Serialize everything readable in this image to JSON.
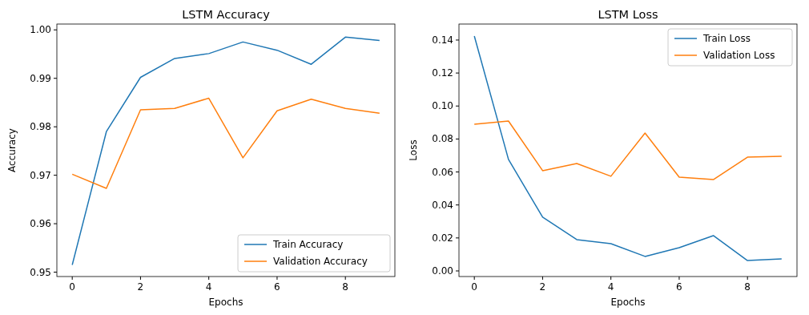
{
  "chart_data": [
    {
      "type": "line",
      "title": "LSTM Accuracy",
      "xlabel": "Epochs",
      "ylabel": "Accuracy",
      "x": [
        0,
        1,
        2,
        3,
        4,
        5,
        6,
        7,
        8,
        9
      ],
      "xlim": [
        -0.45,
        9.45
      ],
      "xticks": [
        0,
        2,
        4,
        6,
        8
      ],
      "ylim": [
        0.9491,
        1.0012
      ],
      "yticks": [
        {
          "value": 0.95,
          "label": "0.95"
        },
        {
          "value": 0.96,
          "label": "0.96"
        },
        {
          "value": 0.97,
          "label": "0.97"
        },
        {
          "value": 0.98,
          "label": "0.98"
        },
        {
          "value": 0.99,
          "label": "0.99"
        },
        {
          "value": 1.0,
          "label": "1.00"
        }
      ],
      "legend": "bottom right",
      "series": [
        {
          "name": "Train Accuracy",
          "color": "#1f77b4",
          "values": [
            0.9515,
            0.979,
            0.9902,
            0.9941,
            0.9951,
            0.9975,
            0.9958,
            0.9929,
            0.9985,
            0.9978
          ]
        },
        {
          "name": "Validation Accuracy",
          "color": "#ff7f0e",
          "values": [
            0.9702,
            0.9673,
            0.9835,
            0.9838,
            0.9859,
            0.9736,
            0.9833,
            0.9857,
            0.9838,
            0.9828
          ]
        }
      ]
    },
    {
      "type": "line",
      "title": "LSTM Loss",
      "xlabel": "Epochs",
      "ylabel": "Loss",
      "x": [
        0,
        1,
        2,
        3,
        4,
        5,
        6,
        7,
        8,
        9
      ],
      "xlim": [
        -0.45,
        9.45
      ],
      "xticks": [
        0,
        2,
        4,
        6,
        8
      ],
      "ylim": [
        -0.0034,
        0.1497
      ],
      "yticks": [
        {
          "value": 0,
          "label": "0.00"
        },
        {
          "value": 0.02,
          "label": "0.02"
        },
        {
          "value": 0.04,
          "label": "0.04"
        },
        {
          "value": 0.06,
          "label": "0.06"
        },
        {
          "value": 0.08,
          "label": "0.08"
        },
        {
          "value": 0.1,
          "label": "0.10"
        },
        {
          "value": 0.12,
          "label": "0.12"
        },
        {
          "value": 0.14,
          "label": "0.14"
        }
      ],
      "legend": "top right",
      "series": [
        {
          "name": "Train Loss",
          "color": "#1f77b4",
          "values": [
            0.1424,
            0.0676,
            0.0326,
            0.019,
            0.0165,
            0.0088,
            0.0141,
            0.0214,
            0.0063,
            0.0073
          ]
        },
        {
          "name": "Validation Loss",
          "color": "#ff7f0e",
          "values": [
            0.089,
            0.0909,
            0.0608,
            0.0651,
            0.0574,
            0.0836,
            0.0569,
            0.0554,
            0.069,
            0.0695
          ]
        }
      ]
    }
  ]
}
